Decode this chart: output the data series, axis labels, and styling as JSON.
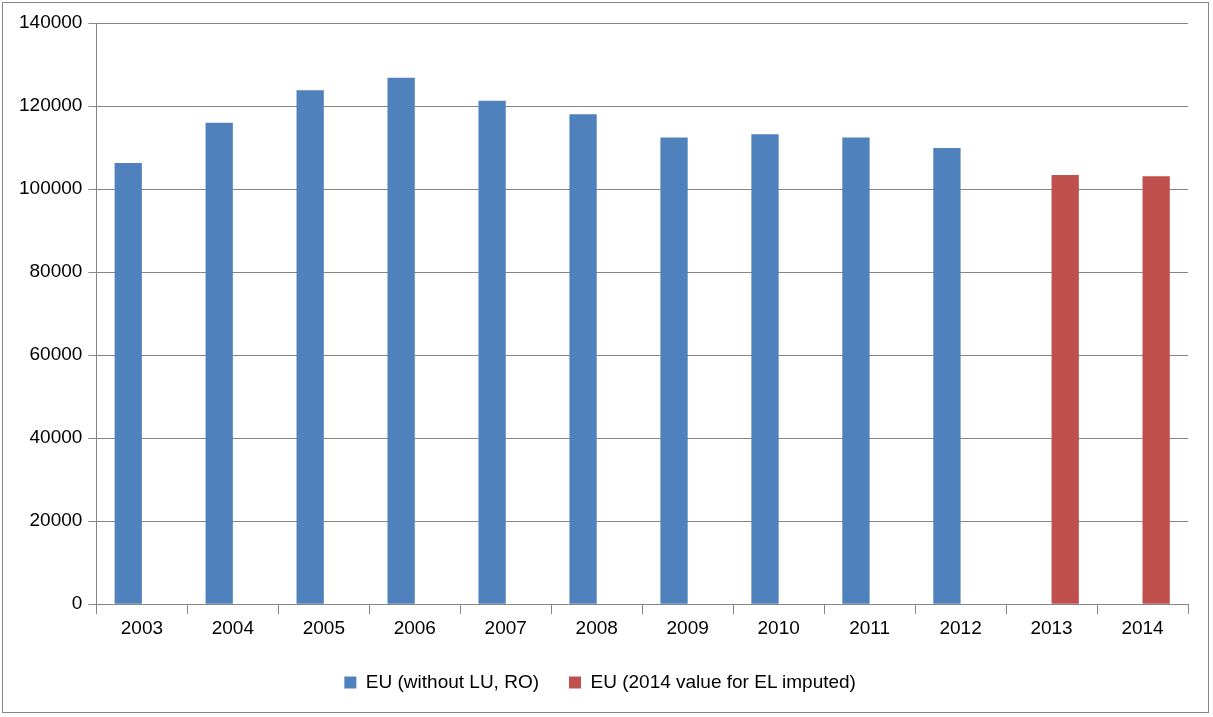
{
  "chart_data": {
    "type": "bar",
    "categories": [
      "2003",
      "2004",
      "2005",
      "2006",
      "2007",
      "2008",
      "2009",
      "2010",
      "2011",
      "2012",
      "2013",
      "2014"
    ],
    "series": [
      {
        "name": "EU (without LU, RO)",
        "color": "#4f81bd",
        "values": [
          106300,
          116000,
          123800,
          126800,
          121300,
          118000,
          112400,
          113200,
          112400,
          109900,
          null,
          null
        ]
      },
      {
        "name": "EU (2014 value for EL imputed)",
        "color": "#c0504d",
        "values": [
          null,
          null,
          null,
          null,
          null,
          null,
          null,
          null,
          null,
          null,
          103400,
          103100
        ]
      }
    ],
    "ylim": [
      0,
      140000
    ],
    "yticks": [
      0,
      20000,
      40000,
      60000,
      80000,
      100000,
      120000,
      140000
    ],
    "grid": "y",
    "legend": "bottom"
  }
}
